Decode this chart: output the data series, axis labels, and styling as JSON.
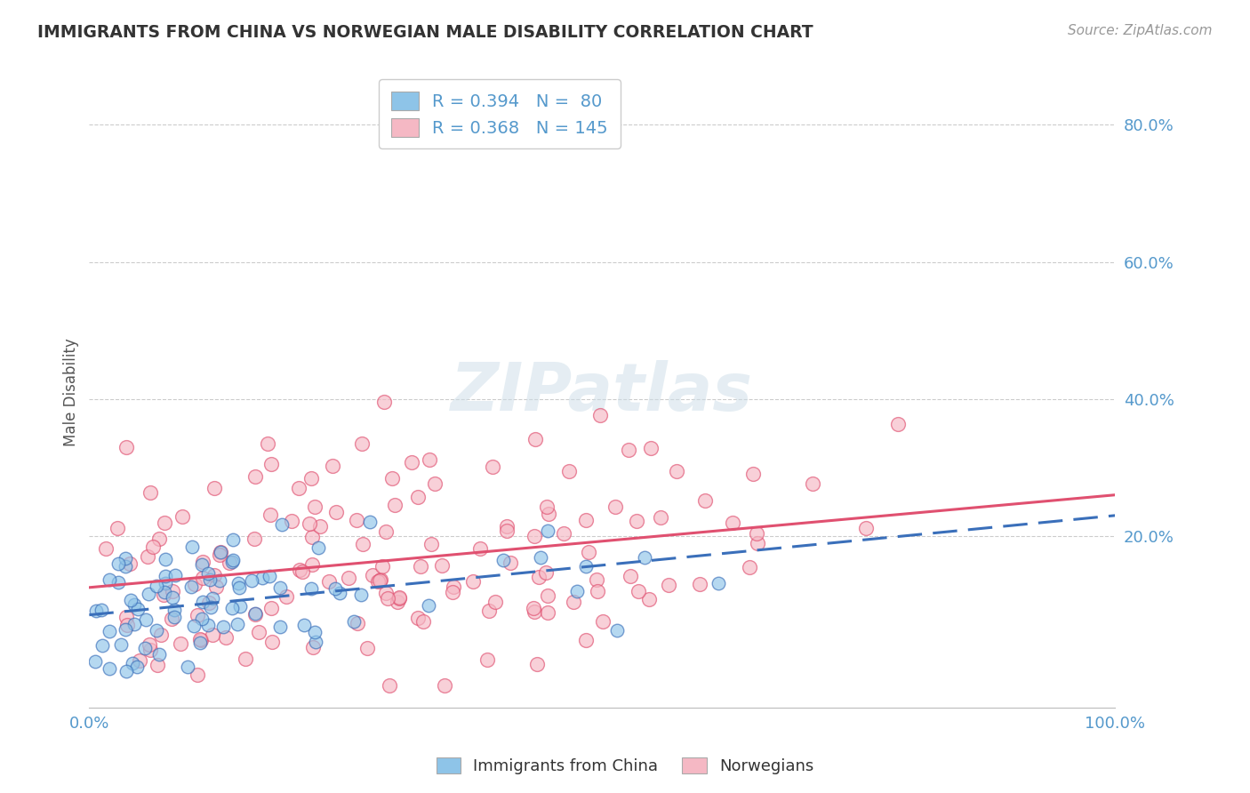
{
  "title": "IMMIGRANTS FROM CHINA VS NORWEGIAN MALE DISABILITY CORRELATION CHART",
  "source": "Source: ZipAtlas.com",
  "ylabel": "Male Disability",
  "xlim": [
    0.0,
    1.0
  ],
  "ylim": [
    -0.05,
    0.87
  ],
  "xticks": [
    0.0,
    0.25,
    0.5,
    0.75,
    1.0
  ],
  "xticklabels": [
    "0.0%",
    "",
    "",
    "",
    "100.0%"
  ],
  "yticks": [
    0.2,
    0.4,
    0.6,
    0.8
  ],
  "yticklabels": [
    "20.0%",
    "40.0%",
    "60.0%",
    "80.0%"
  ],
  "legend_r1": "R = 0.394",
  "legend_n1": "N =  80",
  "legend_r2": "R = 0.368",
  "legend_n2": "N = 145",
  "color_blue": "#8ec4e8",
  "color_pink": "#f5b8c4",
  "color_blue_line": "#3a6fba",
  "color_pink_line": "#e05070",
  "watermark": "ZIPatlas",
  "background_color": "#ffffff",
  "grid_color": "#cccccc",
  "title_color": "#333333",
  "axis_label_color": "#5599cc",
  "seed": 42,
  "n_blue": 80,
  "n_pink": 145,
  "R_blue": 0.394,
  "R_pink": 0.368,
  "blue_intercept": 0.085,
  "blue_slope": 0.145,
  "pink_intercept": 0.125,
  "pink_slope": 0.135
}
